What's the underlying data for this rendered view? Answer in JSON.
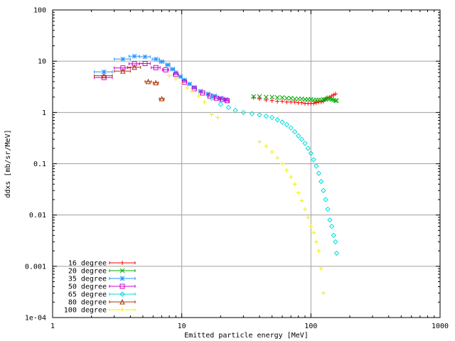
{
  "chart_data": {
    "type": "scatter",
    "title": "",
    "xlabel": "Emitted particle energy [MeV]",
    "ylabel": "ddxs [mb/sr/MeV]",
    "xscale": "log",
    "yscale": "log",
    "xlim": [
      1,
      1000
    ],
    "ylim": [
      0.0001,
      100
    ],
    "grid": true,
    "legend_position": "bottom-left",
    "x_ticks": [
      {
        "value": 1,
        "label": "1"
      },
      {
        "value": 10,
        "label": "10"
      },
      {
        "value": 100,
        "label": "100"
      },
      {
        "value": 1000,
        "label": "1000"
      }
    ],
    "y_ticks": [
      {
        "value": 0.0001,
        "label": "1e-04"
      },
      {
        "value": 0.001,
        "label": "0.001"
      },
      {
        "value": 0.01,
        "label": "0.01"
      },
      {
        "value": 0.1,
        "label": "0.1"
      },
      {
        "value": 1,
        "label": "1"
      },
      {
        "value": 10,
        "label": "10"
      },
      {
        "value": 100,
        "label": "100"
      }
    ],
    "series": [
      {
        "name": "16 degree",
        "color": "#ff0000",
        "marker": "plus",
        "x": [
          36,
          40,
          45,
          50,
          55,
          60,
          65,
          70,
          75,
          80,
          85,
          90,
          95,
          100,
          105,
          110,
          115,
          120,
          125,
          130,
          135,
          140,
          145,
          150,
          155
        ],
        "y": [
          1.95,
          1.85,
          1.75,
          1.7,
          1.65,
          1.65,
          1.6,
          1.6,
          1.6,
          1.55,
          1.55,
          1.5,
          1.5,
          1.5,
          1.5,
          1.55,
          1.6,
          1.6,
          1.65,
          1.8,
          1.95,
          2.0,
          2.1,
          2.2,
          2.3
        ]
      },
      {
        "name": "20 degree",
        "color": "#00aa00",
        "marker": "x",
        "x": [
          36,
          40,
          45,
          50,
          55,
          60,
          65,
          70,
          75,
          80,
          85,
          90,
          95,
          100,
          105,
          110,
          115,
          120,
          125,
          130,
          135,
          140,
          145,
          150,
          155,
          158
        ],
        "y": [
          2.05,
          2.05,
          2.0,
          2.0,
          1.95,
          1.95,
          1.9,
          1.9,
          1.85,
          1.85,
          1.85,
          1.8,
          1.8,
          1.8,
          1.75,
          1.75,
          1.75,
          1.75,
          1.8,
          1.8,
          1.9,
          1.85,
          1.8,
          1.75,
          1.7,
          1.7
        ]
      },
      {
        "name": "35 degree",
        "color": "#1e90ff",
        "marker": "star",
        "x": [
          2.5,
          3.5,
          4.3,
          5.2,
          6.3,
          7.0,
          7.8,
          8.5,
          9.0,
          9.8,
          10.5,
          11.5,
          12.5,
          14.0,
          16.0,
          18.0,
          20.0,
          22.0
        ],
        "y": [
          6.2,
          11.0,
          12.5,
          12.2,
          11.0,
          9.8,
          8.5,
          7.0,
          6.0,
          5.0,
          4.3,
          3.6,
          3.1,
          2.6,
          2.3,
          2.1,
          1.9,
          1.8
        ],
        "xerr": [
          0.4,
          0.5,
          0.4,
          0.5,
          0.4,
          0.3,
          0.3,
          0.3,
          0.2,
          0.2,
          0.3,
          0.3,
          0.4,
          0.4,
          0.4,
          0.5,
          0.5,
          0.5
        ]
      },
      {
        "name": "50 degree",
        "color": "#cc00cc",
        "marker": "square",
        "x": [
          2.5,
          3.5,
          4.3,
          5.2,
          6.3,
          7.5,
          9.0,
          10.5,
          12.5,
          14.5,
          16.5,
          18.5,
          20.5,
          22.5
        ],
        "y": [
          4.8,
          7.4,
          8.9,
          9.0,
          7.5,
          6.8,
          5.5,
          3.9,
          2.9,
          2.4,
          2.1,
          1.9,
          1.8,
          1.7
        ],
        "xerr": [
          0.4,
          0.5,
          0.4,
          0.5,
          0.5,
          0.4,
          0.4,
          0.4,
          0.5,
          0.5,
          0.5,
          0.5,
          0.5,
          0.5
        ]
      },
      {
        "name": "65 degree",
        "color": "#00dddd",
        "marker": "diamond",
        "x": [
          17,
          20,
          23,
          26,
          30,
          35,
          40,
          45,
          50,
          55,
          60,
          65,
          70,
          75,
          80,
          85,
          90,
          95,
          100,
          105,
          110,
          115,
          120,
          125,
          130,
          135,
          140,
          145,
          150,
          155,
          158
        ],
        "y": [
          1.9,
          1.45,
          1.25,
          1.1,
          1.0,
          0.95,
          0.9,
          0.85,
          0.8,
          0.72,
          0.65,
          0.58,
          0.5,
          0.42,
          0.35,
          0.3,
          0.25,
          0.2,
          0.16,
          0.12,
          0.09,
          0.065,
          0.045,
          0.03,
          0.02,
          0.013,
          0.008,
          0.006,
          0.004,
          0.003,
          0.0018
        ]
      },
      {
        "name": "80 degree",
        "color": "#aa3300",
        "marker": "triangle",
        "x": [
          2.5,
          3.5,
          4.3,
          5.5,
          6.3,
          7.0
        ],
        "y": [
          5.2,
          6.4,
          7.6,
          4.0,
          3.8,
          1.85
        ],
        "xerr": [
          0.4,
          0.5,
          0.5,
          0.3,
          0.3,
          0.3
        ]
      },
      {
        "name": "100 degree",
        "color": "#f0f000",
        "marker": "plus",
        "x": [
          8.0,
          9.0,
          10.0,
          11.0,
          12.0,
          13.5,
          15.0,
          17.0,
          19.0,
          40,
          45,
          50,
          55,
          60,
          65,
          70,
          75,
          80,
          85,
          90,
          95,
          100,
          105,
          110,
          115,
          120,
          125
        ],
        "y": [
          5.2,
          4.5,
          3.7,
          3.0,
          2.6,
          2.1,
          1.6,
          0.92,
          0.8,
          0.27,
          0.22,
          0.17,
          0.13,
          0.1,
          0.075,
          0.055,
          0.04,
          0.027,
          0.019,
          0.013,
          0.009,
          0.006,
          0.0045,
          0.003,
          0.002,
          0.0009,
          0.0003
        ]
      }
    ]
  }
}
